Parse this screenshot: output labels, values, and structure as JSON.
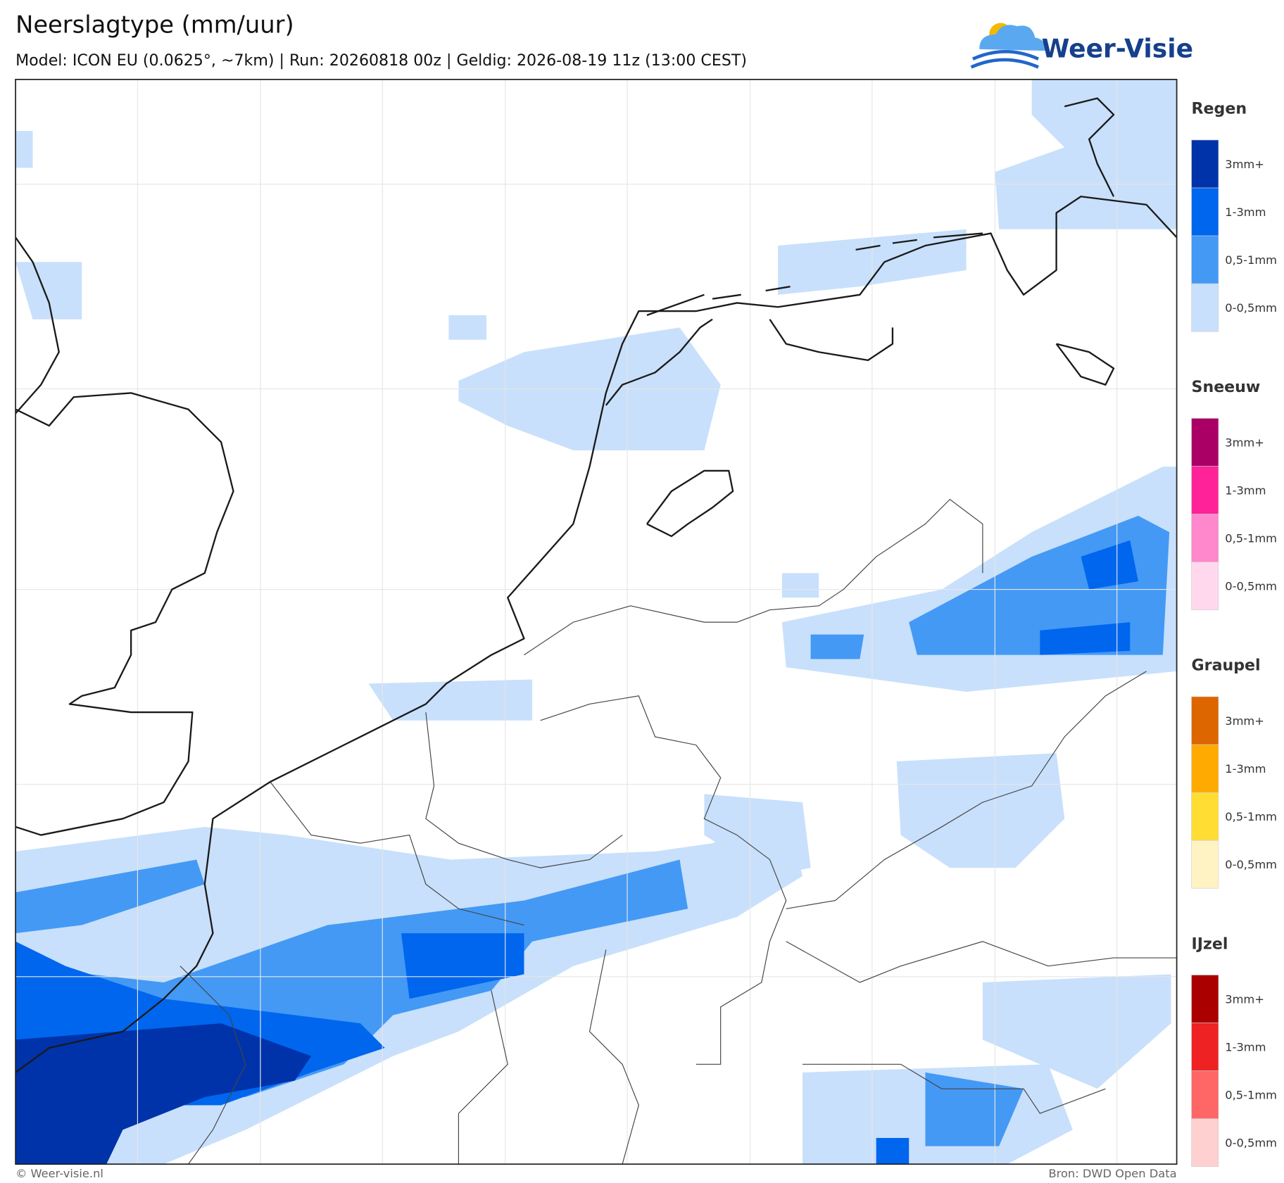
{
  "header": {
    "title": "Neerslagtype (mm/uur)",
    "subtitle": "Model: ICON EU (0.0625°, ~7km)  |  Run: 20260818 00z  |  Geldig: 2026-08-19 11z (13:00 CEST)"
  },
  "logo": {
    "text": "Weer-Visie"
  },
  "legend": [
    {
      "name": "Regen",
      "items": [
        {
          "label": "3mm+",
          "color": "#0033aa"
        },
        {
          "label": "1-3mm",
          "color": "#0066ee"
        },
        {
          "label": "0,5-1mm",
          "color": "#4499f5"
        },
        {
          "label": "0-0,5mm",
          "color": "#c8e0fb"
        }
      ]
    },
    {
      "name": "Sneeuw",
      "items": [
        {
          "label": "3mm+",
          "color": "#aa0066"
        },
        {
          "label": "1-3mm",
          "color": "#ff2299"
        },
        {
          "label": "0,5-1mm",
          "color": "#ff88cc"
        },
        {
          "label": "0-0,5mm",
          "color": "#ffd8ee"
        }
      ]
    },
    {
      "name": "Graupel",
      "items": [
        {
          "label": "3mm+",
          "color": "#dd6600"
        },
        {
          "label": "1-3mm",
          "color": "#ffaa00"
        },
        {
          "label": "0,5-1mm",
          "color": "#ffdd33"
        },
        {
          "label": "0-0,5mm",
          "color": "#fff3c4"
        }
      ]
    },
    {
      "name": "IJzel",
      "items": [
        {
          "label": "3mm+",
          "color": "#aa0000"
        },
        {
          "label": "1-3mm",
          "color": "#ee2222"
        },
        {
          "label": "0,5-1mm",
          "color": "#ff6666"
        },
        {
          "label": "0-0,5mm",
          "color": "#ffd0d0"
        }
      ]
    }
  ],
  "footer": {
    "left": "© Weer-visie.nl",
    "right": "Bron: DWD Open Data"
  }
}
